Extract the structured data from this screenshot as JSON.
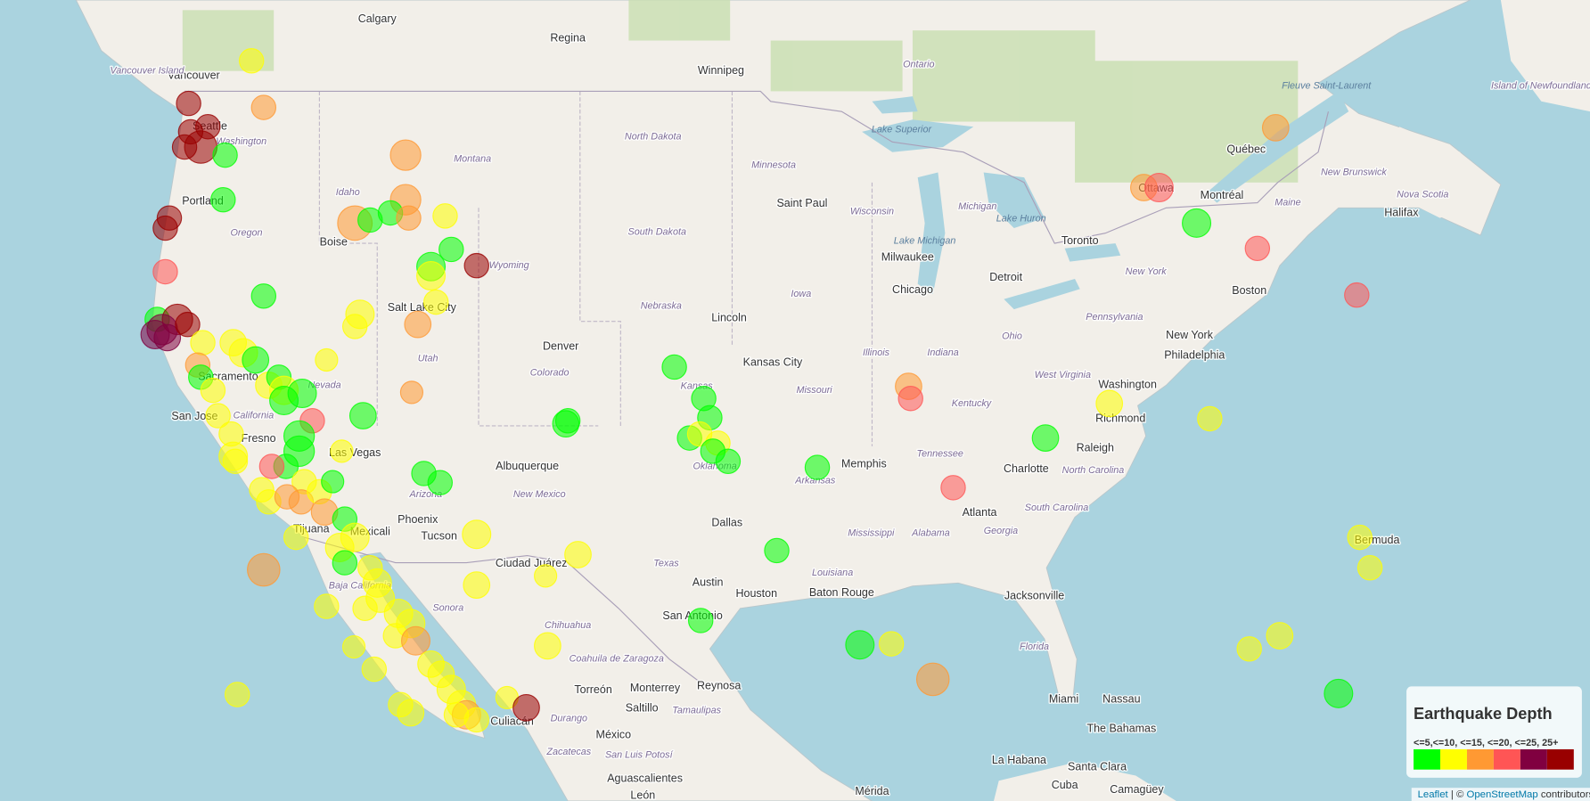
{
  "cities": [
    "Calgary",
    "Regina",
    "Winnipeg",
    "Vancouver",
    "Seattle",
    "Portland",
    "Boise",
    "Salt Lake City",
    "Denver",
    "Lincoln",
    "Kansas City",
    "Sacramento",
    "San Jose",
    "Fresno",
    "Las Vegas",
    "Phoenix",
    "Tucson",
    "Albuquerque",
    "Ciudad Juárez",
    "Dallas",
    "Austin",
    "Houston",
    "San Antonio",
    "Monterrey",
    "Saltillo",
    "Reynosa",
    "Torreón",
    "Culiacán",
    "Aguascalientes",
    "León",
    "México",
    "Mérida",
    "Memphis",
    "Saint Paul",
    "Milwaukee",
    "Chicago",
    "Detroit",
    "Toronto",
    "Ottawa",
    "Montréal",
    "Québec",
    "Halifax",
    "Boston",
    "New York",
    "Philadelphia",
    "Washington",
    "Richmond",
    "Raleigh",
    "Charlotte",
    "Atlanta",
    "Jacksonville",
    "Miami",
    "Nassau",
    "La Habana",
    "Santa Clara",
    "Camagüey",
    "Cuba",
    "Baton Rouge",
    "Tijuana",
    "Mexicali",
    "Bermuda",
    "The Bahamas"
  ],
  "regions": [
    "Vancouver Island",
    "Washington",
    "Oregon",
    "Idaho",
    "Montana",
    "Wyoming",
    "Utah",
    "Nevada",
    "Colorado",
    "Kansas",
    "Nebraska",
    "South Dakota",
    "North Dakota",
    "Minnesota",
    "Wisconsin",
    "Michigan",
    "Iowa",
    "Missouri",
    "Illinois",
    "Indiana",
    "Ohio",
    "Kentucky",
    "Tennessee",
    "Arkansas",
    "Oklahoma",
    "Texas",
    "New Mexico",
    "Arizona",
    "California",
    "Mississippi",
    "Alabama",
    "Georgia",
    "Florida",
    "South Carolina",
    "North Carolina",
    "West Virginia",
    "Pennsylvania",
    "New York",
    "Maine",
    "Nova Scotia",
    "New Brunswick",
    "Ontario",
    "Louisiana",
    "Sonora",
    "Chihuahua",
    "Coahuila de Zaragoza",
    "Durango",
    "Tamaulipas",
    "Baja California",
    "Zacatecas",
    "San Luis Potosí",
    "Island of Newfoundland"
  ],
  "water_labels": [
    "Lake Superior",
    "Lake Michigan",
    "Lake Huron",
    "Fleuve Saint-Laurent"
  ],
  "legend": {
    "title": "Earthquake Depth",
    "labels": "<=5,<=10, <=15, <=20, <=25, 25+",
    "colors": [
      "#00ff00",
      "#ffff00",
      "#ff9933",
      "#ff5555",
      "#800040",
      "#990000"
    ]
  },
  "attribution": {
    "leaflet": "Leaflet",
    "separator": "| ©",
    "osm": "OpenStreetMap",
    "suffix": "contributors"
  }
}
